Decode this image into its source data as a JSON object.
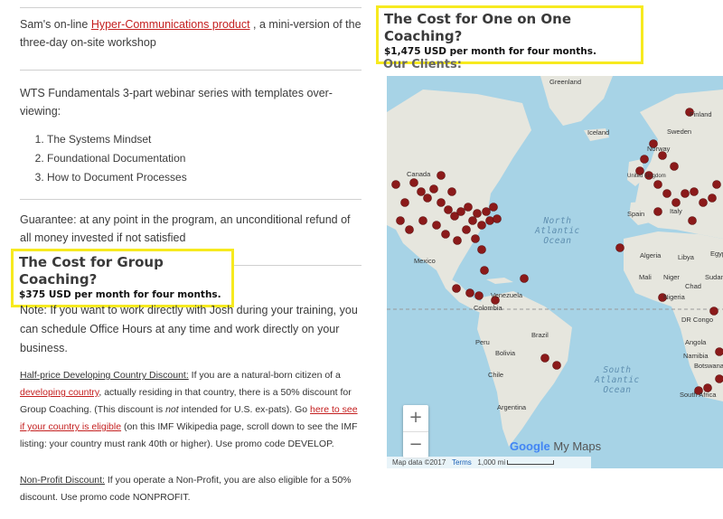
{
  "left": {
    "hyper": {
      "pre": "Sam's on-line ",
      "link": "Hyper-Communications product",
      "post": " , a mini-version of the three-day on-site workshop"
    },
    "webinar": "WTS Fundamentals 3-part webinar series with templates over-viewing:",
    "webinar_items": [
      "The Systems Mindset",
      "Foundational Documentation",
      "How to Document Processes"
    ],
    "guarantee": "Guarantee: at any point in the program, an unconditional refund of all money invested if not satisfied",
    "group_box": {
      "heading": "The Cost for Group Coaching?",
      "price": "$375 USD per month for four months."
    },
    "note": "Note: If you want to work directly with Josh during your training, you can schedule Office Hours at any time and work directly on your business.",
    "dev": {
      "title": "Half-price Developing Country Discount:",
      "t1": " If you are a natural-born citizen of a ",
      "link1": "developing country",
      "t2": ", actually residing in that country, there is a 50% discount for Group Coaching. (This discount is ",
      "em": "not",
      "t3": " intended for U.S. ex-pats). Go ",
      "link2": "here to see if your country is eligible",
      "t4": " (on this IMF Wikipedia page, scroll down to see the IMF listing: your country must rank 40th or higher). Use promo code DEVELOP."
    },
    "np": {
      "title": "Non-Profit Discount:",
      "text": " If you operate a Non-Profit, you are also eligible for a 50% discount. Use promo code NONPROFIT."
    }
  },
  "right": {
    "one_box": {
      "heading": "The Cost for One on One Coaching?",
      "price": "$1,475 USD per month for four months."
    },
    "clients_heading": "Our Clients:",
    "map": {
      "zoom_in": "+",
      "zoom_out": "−",
      "brand": {
        "google": "Google",
        "mymaps": " My Maps"
      },
      "attribution": {
        "data": "Map data ©2017",
        "terms": "Terms",
        "scale": "1,000 mi"
      },
      "oceans": {
        "north": [
          "North",
          "Atlantic",
          "Ocean"
        ],
        "south": [
          "South",
          "Atlantic",
          "Ocean"
        ]
      },
      "places": [
        "Greenland",
        "Iceland",
        "Finland",
        "Sweden",
        "Norway",
        "Canada",
        "Mexico",
        "Venezuela",
        "Colombia",
        "Brazil",
        "Peru",
        "Bolivia",
        "Chile",
        "Argentina",
        "Algeria",
        "Libya",
        "Egypt",
        "Mali",
        "Niger",
        "Chad",
        "Sudan",
        "Nigeria",
        "DR Congo",
        "Angola",
        "Namibia",
        "Botswana",
        "South Africa",
        "United Kingdom",
        "Spain",
        "Italy"
      ],
      "pin_color": "#8b1a1a",
      "land_color": "#e8e8e0",
      "water_color": "#a7d3e6"
    }
  }
}
